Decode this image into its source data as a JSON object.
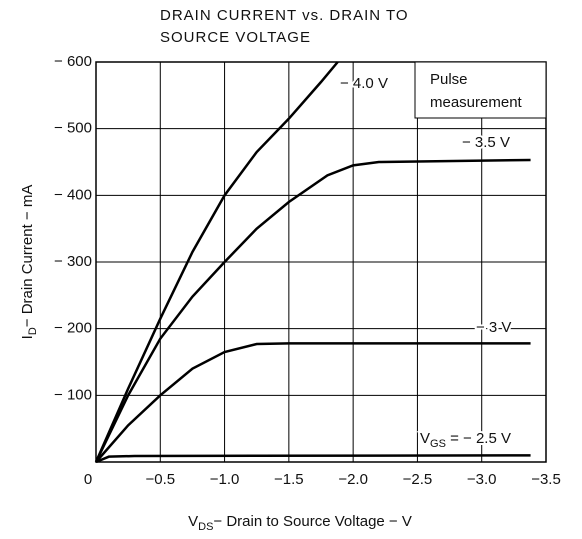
{
  "chart_data": {
    "type": "line",
    "title": [
      "DRAIN CURRENT vs. DRAIN TO",
      "SOURCE VOLTAGE"
    ],
    "xlabel": {
      "main": "V",
      "sub": "DS",
      "rest": "− Drain to Source Voltage − V"
    },
    "ylabel": {
      "main": "I",
      "sub": "D",
      "rest": "− Drain Current − mA"
    },
    "annotation": [
      "Pulse",
      "measurement"
    ],
    "xlim": [
      0,
      -3.5
    ],
    "ylim": [
      0,
      -600
    ],
    "xticks": [
      0,
      {
        "value": -0.5,
        "label": "−0.5"
      },
      {
        "value": -1.0,
        "label": "−1.0"
      },
      {
        "value": -1.5,
        "label": "−1.5"
      },
      {
        "value": -2.0,
        "label": "−2.0"
      },
      {
        "value": -2.5,
        "label": "−2.5"
      },
      {
        "value": -3.0,
        "label": "−3.0"
      },
      {
        "value": -3.5,
        "label": "−3.5"
      }
    ],
    "yticks": [
      {
        "value": -100,
        "label": "− 100"
      },
      {
        "value": -200,
        "label": "− 200"
      },
      {
        "value": -300,
        "label": "− 300"
      },
      {
        "value": -400,
        "label": "− 400"
      },
      {
        "value": -500,
        "label": "− 500"
      },
      {
        "value": -600,
        "label": "− 600"
      }
    ],
    "grid": true,
    "series": [
      {
        "name": "− 4.0 V",
        "color": "#000000",
        "x": [
          0,
          -0.25,
          -0.5,
          -0.75,
          -1.0,
          -1.25,
          -1.5,
          -1.75,
          -1.88
        ],
        "values": [
          0,
          -110,
          -215,
          -315,
          -400,
          -465,
          -515,
          -570,
          -600
        ]
      },
      {
        "name": "− 3.5 V",
        "color": "#000000",
        "x": [
          0,
          -0.25,
          -0.5,
          -0.75,
          -1.0,
          -1.25,
          -1.5,
          -1.8,
          -2.0,
          -2.2,
          -3.38
        ],
        "values": [
          0,
          -100,
          -185,
          -248,
          -300,
          -350,
          -390,
          -430,
          -445,
          -450,
          -453
        ]
      },
      {
        "name": "− 3 V",
        "color": "#000000",
        "x": [
          0,
          -0.25,
          -0.5,
          -0.75,
          -1.0,
          -1.25,
          -1.5,
          -3.38
        ],
        "values": [
          0,
          -55,
          -100,
          -140,
          -165,
          -177,
          -178,
          -178
        ]
      },
      {
        "name": {
          "main": "V",
          "sub": "GS",
          "rest": " = − 2.5 V"
        },
        "color": "#000000",
        "x": [
          0,
          -0.1,
          -0.3,
          -3.38
        ],
        "values": [
          0,
          -8,
          -9,
          -10
        ]
      }
    ]
  }
}
